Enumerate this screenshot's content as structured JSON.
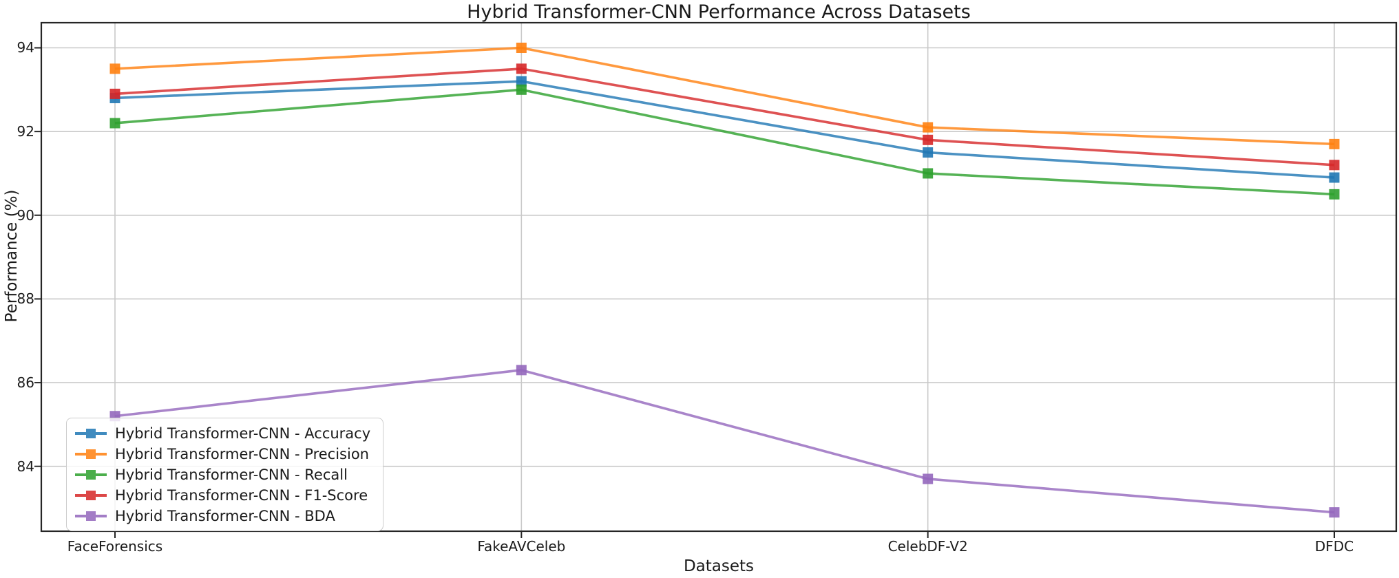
{
  "chart_data": {
    "type": "line",
    "title": "Hybrid Transformer-CNN Performance Across Datasets",
    "xlabel": "Datasets",
    "ylabel": "Performance (%)",
    "categories": [
      "FaceForensics",
      "FakeAVCeleb",
      "CelebDF-V2",
      "DFDC"
    ],
    "series": [
      {
        "name": "Hybrid Transformer-CNN - Accuracy",
        "color": "#1f77b4",
        "values": [
          92.8,
          93.2,
          91.5,
          90.9
        ]
      },
      {
        "name": "Hybrid Transformer-CNN - Precision",
        "color": "#ff7f0e",
        "values": [
          93.5,
          94.0,
          92.1,
          91.7
        ]
      },
      {
        "name": "Hybrid Transformer-CNN - Recall",
        "color": "#2ca02c",
        "values": [
          92.2,
          93.0,
          91.0,
          90.5
        ]
      },
      {
        "name": "Hybrid Transformer-CNN - F1-Score",
        "color": "#d62728",
        "values": [
          92.9,
          93.5,
          91.8,
          91.2
        ]
      },
      {
        "name": "Hybrid Transformer-CNN - BDA",
        "color": "#9467bd",
        "values": [
          85.2,
          86.3,
          83.7,
          82.9
        ]
      }
    ],
    "yticks": [
      84,
      86,
      88,
      90,
      92,
      94
    ],
    "ylim": [
      82.45,
      94.6
    ],
    "grid": true,
    "legend_position": "lower left",
    "marker": "square",
    "colors": {
      "grid": "#c9c9c9",
      "spine": "#262626",
      "text": "#1a1a1a"
    }
  }
}
